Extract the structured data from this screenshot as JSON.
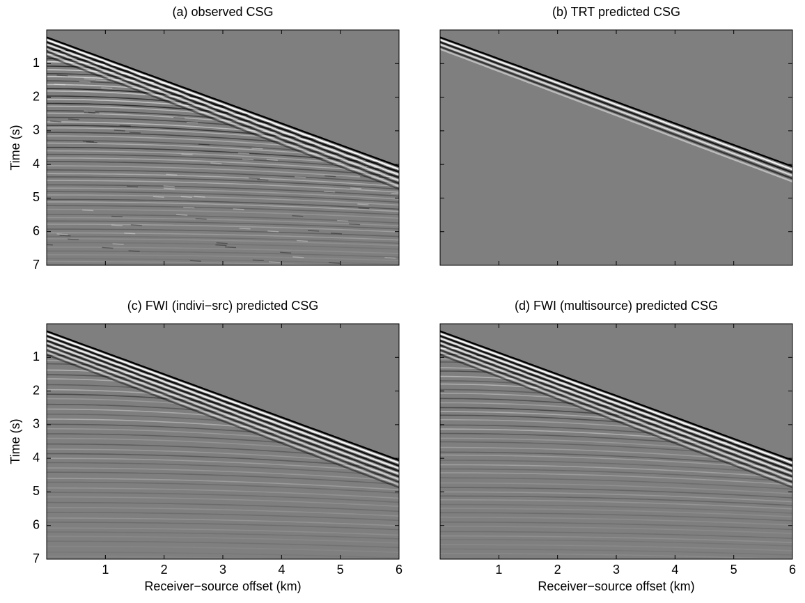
{
  "chart_data": [
    {
      "type": "image",
      "title": "(a) observed CSG",
      "ylabel": "Time (s)",
      "xlim": [
        0,
        6
      ],
      "ylim": [
        0,
        7
      ],
      "y_reversed": true,
      "xticks": [
        1,
        2,
        3,
        4,
        5,
        6
      ],
      "yticks": [
        1,
        2,
        3,
        4,
        5,
        6,
        7
      ],
      "xticklabels": false,
      "yticklabels": true
    },
    {
      "type": "image",
      "title": "(b) TRT predicted CSG",
      "xlim": [
        0,
        6
      ],
      "ylim": [
        0,
        7
      ],
      "y_reversed": true,
      "xticks": [
        1,
        2,
        3,
        4,
        5,
        6
      ],
      "yticks": [
        1,
        2,
        3,
        4,
        5,
        6,
        7
      ],
      "xticklabels": false,
      "yticklabels": false
    },
    {
      "type": "image",
      "title": "(c) FWI (indivi−src) predicted CSG",
      "ylabel": "Time (s)",
      "xlabel": "Receiver−source offset (km)",
      "xlim": [
        0,
        6
      ],
      "ylim": [
        0,
        7
      ],
      "y_reversed": true,
      "xticks": [
        1,
        2,
        3,
        4,
        5,
        6
      ],
      "yticks": [
        1,
        2,
        3,
        4,
        5,
        6,
        7
      ],
      "xticklabels": true,
      "yticklabels": true
    },
    {
      "type": "image",
      "title": "(d) FWI (multisource) predicted CSG",
      "xlabel": "Receiver−source offset (km)",
      "xlim": [
        0,
        6
      ],
      "ylim": [
        0,
        7
      ],
      "y_reversed": true,
      "xticks": [
        1,
        2,
        3,
        4,
        5,
        6
      ],
      "yticks": [
        1,
        2,
        3,
        4,
        5,
        6,
        7
      ],
      "xticklabels": true,
      "yticklabels": false
    }
  ]
}
